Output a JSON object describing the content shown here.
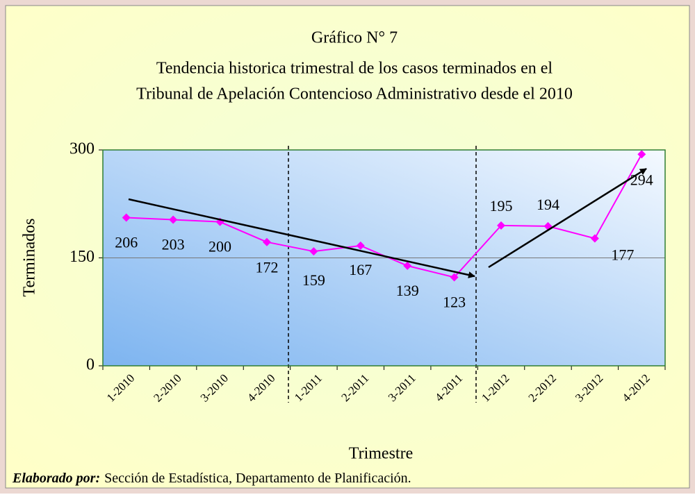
{
  "chart_data": {
    "type": "line",
    "title": "Gráfico N° 7",
    "subtitle": [
      "Tendencia historica trimestral de los casos terminados en el",
      "Tribunal de Apelación Contencioso Administrativo desde el 2010"
    ],
    "x_label": "Trimestre",
    "y_label": "Terminados",
    "categories": [
      "1-2010",
      "2-2010",
      "3-2010",
      "4-2010",
      "1-2011",
      "2-2011",
      "3-2011",
      "4-2011",
      "1-2012",
      "2-2012",
      "3-2012",
      "4-2012"
    ],
    "series": [
      {
        "name": "Terminados",
        "color": "#ff00ff",
        "values": [
          206,
          203,
          200,
          172,
          159,
          167,
          139,
          123,
          195,
          194,
          177,
          294
        ]
      }
    ],
    "ylim": [
      0,
      300
    ],
    "yticks": [
      0,
      150,
      300
    ],
    "grid": true
  },
  "source": {
    "label": "Elaborado por:",
    "text": "Sección de Estadística, Departamento de Planificación."
  }
}
